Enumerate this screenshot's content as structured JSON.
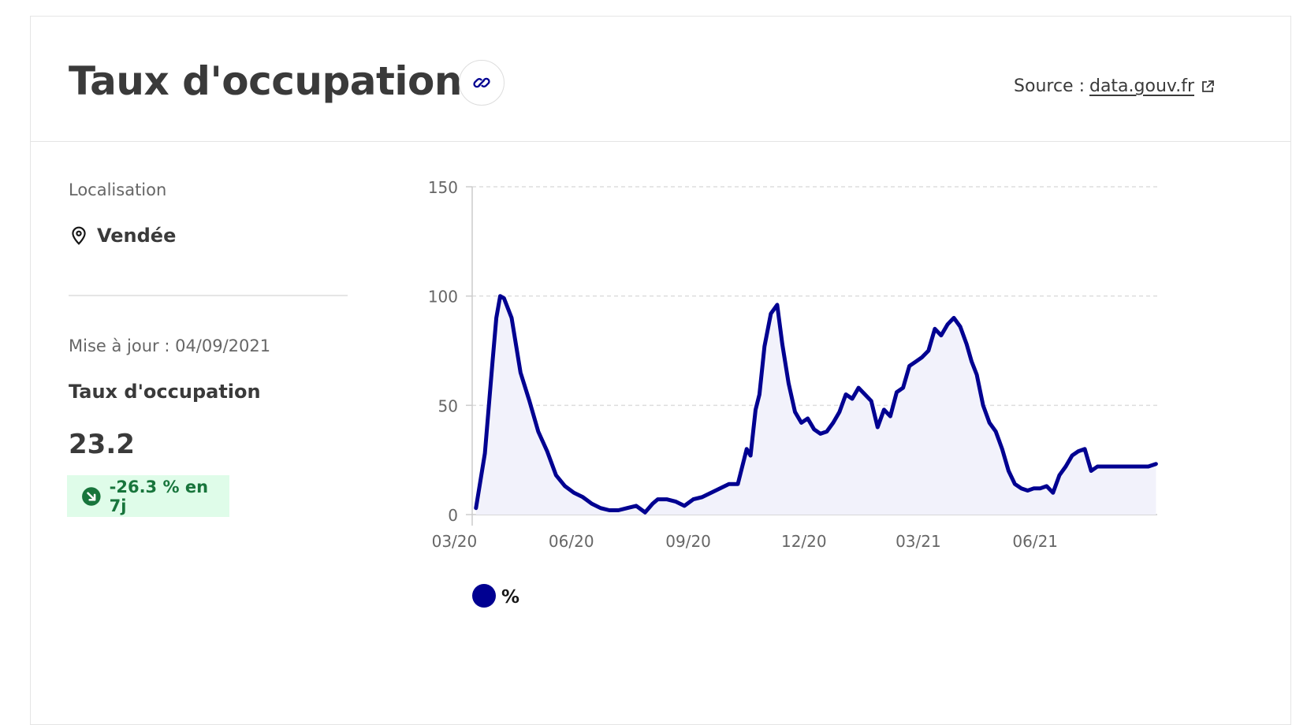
{
  "header": {
    "title": "Taux d'occupation",
    "source_prefix": "Source :",
    "source_link": "data.gouv.fr"
  },
  "panel": {
    "location_label": "Localisation",
    "location_value": "Vendée",
    "updated": "Mise à jour : 04/09/2021",
    "metric_label": "Taux d'occupation",
    "metric_value": "23.2",
    "trend": "-26.3 % en 7j"
  },
  "colors": {
    "series": "#000091",
    "fill": "#f2f2fb",
    "trend_bg": "#dffce9",
    "trend_text": "#18753c"
  },
  "chart_data": {
    "type": "area",
    "title": "",
    "xlabel": "",
    "ylabel": "",
    "ylim": [
      0,
      150
    ],
    "yticks": [
      0,
      50,
      100,
      150
    ],
    "xticks": [
      "03/20",
      "06/20",
      "09/20",
      "12/20",
      "03/21",
      "06/21"
    ],
    "grid": true,
    "legend": "bottom-left",
    "series": [
      {
        "name": "%",
        "x": [
          "2020-03-18",
          "2020-03-25",
          "2020-03-31",
          "2020-04-03",
          "2020-04-06",
          "2020-04-09",
          "2020-04-15",
          "2020-04-22",
          "2020-04-29",
          "2020-05-06",
          "2020-05-13",
          "2020-05-20",
          "2020-05-27",
          "2020-06-03",
          "2020-06-10",
          "2020-06-17",
          "2020-06-24",
          "2020-07-01",
          "2020-07-08",
          "2020-07-15",
          "2020-07-22",
          "2020-07-29",
          "2020-08-04",
          "2020-08-08",
          "2020-08-15",
          "2020-08-22",
          "2020-08-29",
          "2020-09-05",
          "2020-09-12",
          "2020-09-19",
          "2020-09-26",
          "2020-10-03",
          "2020-10-10",
          "2020-10-17",
          "2020-10-20",
          "2020-10-24",
          "2020-10-27",
          "2020-10-31",
          "2020-11-05",
          "2020-11-10",
          "2020-11-14",
          "2020-11-19",
          "2020-11-24",
          "2020-11-29",
          "2020-12-04",
          "2020-12-09",
          "2020-12-14",
          "2020-12-19",
          "2020-12-24",
          "2020-12-29",
          "2021-01-03",
          "2021-01-08",
          "2021-01-13",
          "2021-01-18",
          "2021-01-23",
          "2021-01-28",
          "2021-02-02",
          "2021-02-07",
          "2021-02-12",
          "2021-02-17",
          "2021-02-22",
          "2021-02-27",
          "2021-03-04",
          "2021-03-09",
          "2021-03-14",
          "2021-03-19",
          "2021-03-24",
          "2021-03-29",
          "2021-04-03",
          "2021-04-08",
          "2021-04-12",
          "2021-04-16",
          "2021-04-21",
          "2021-04-26",
          "2021-05-01",
          "2021-05-06",
          "2021-05-11",
          "2021-05-16",
          "2021-05-21",
          "2021-05-26",
          "2021-05-31",
          "2021-06-05",
          "2021-06-10",
          "2021-06-15",
          "2021-06-20",
          "2021-06-25",
          "2021-06-30",
          "2021-07-05",
          "2021-07-10",
          "2021-07-15",
          "2021-07-20",
          "2021-07-25",
          "2021-07-30",
          "2021-08-04",
          "2021-08-09",
          "2021-08-14",
          "2021-08-19",
          "2021-08-24",
          "2021-08-29",
          "2021-09-04"
        ],
        "values": [
          3,
          28,
          70,
          90,
          100,
          99,
          90,
          65,
          52,
          38,
          29,
          18,
          13,
          10,
          8,
          5,
          3,
          2,
          2,
          3,
          4,
          1,
          5,
          7,
          7,
          6,
          4,
          7,
          8,
          10,
          12,
          14,
          14,
          30,
          27,
          48,
          55,
          77,
          92,
          96,
          78,
          60,
          47,
          42,
          44,
          39,
          37,
          38,
          42,
          47,
          55,
          53,
          58,
          55,
          52,
          40,
          48,
          45,
          56,
          58,
          68,
          70,
          72,
          75,
          85,
          82,
          87,
          90,
          86,
          78,
          70,
          64,
          50,
          42,
          38,
          30,
          20,
          14,
          12,
          11,
          12,
          12,
          13,
          10,
          18,
          22,
          27,
          29,
          30,
          20,
          22,
          22,
          22,
          22,
          22,
          22,
          22,
          22,
          22,
          23.2
        ]
      }
    ]
  }
}
